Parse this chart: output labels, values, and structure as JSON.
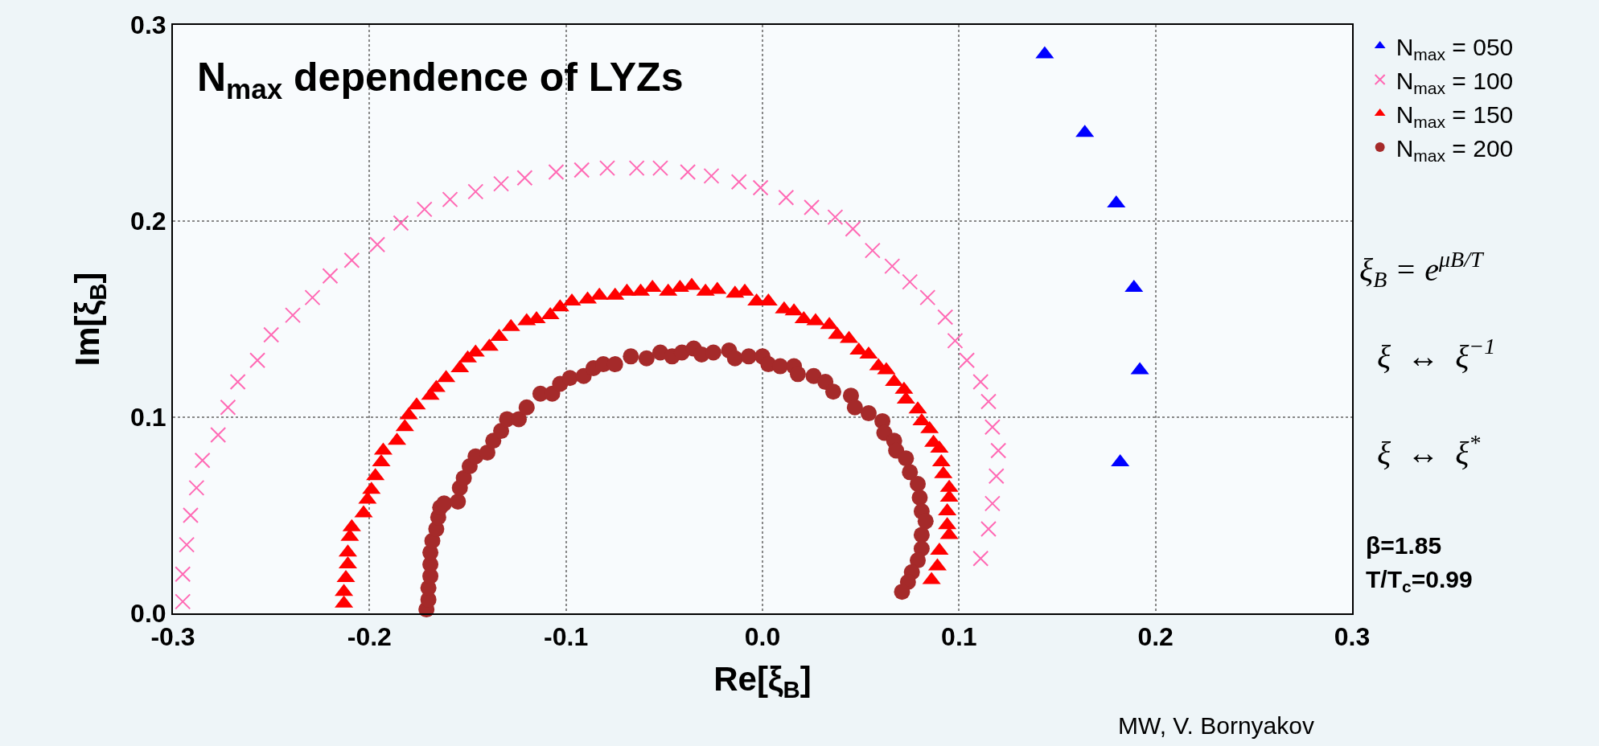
{
  "chart_data": {
    "type": "scatter",
    "title": "N$_{max}$ dependence of LYZs",
    "xlabel": "Re[ξ$_{B}$]",
    "ylabel": "Im[ξ$_{B}$]",
    "xlim": [
      -0.3,
      0.3
    ],
    "ylim": [
      0,
      0.3
    ],
    "xticks": [
      -0.3,
      -0.2,
      -0.1,
      {
        "value": 0,
        "label": "0.0"
      },
      0.1,
      0.2,
      0.3
    ],
    "yticks": [
      {
        "value": 0,
        "label": "0.0"
      },
      0.1,
      0.2,
      0.3
    ],
    "grid": true,
    "legend": "top right",
    "annotations": [
      "ξ$_{B}$ = e$^{μB/T}$",
      "ξ  ↔  ξ$^{−1}$",
      "ξ  ↔  ξ$^{*}$",
      "β=1.85",
      "T/T$_{c}$=0.99",
      "MW, V. Bornyakov"
    ],
    "series": [
      {
        "name": "N$_{max}$ = 050",
        "color": "#0000ff",
        "marker": "triangle",
        "x": [
          0.1436,
          0.164,
          0.18,
          0.189,
          0.192,
          0.182
        ],
        "values": [
          0.285,
          0.245,
          0.209,
          0.166,
          0.124,
          0.077
        ]
      },
      {
        "name": "N$_{max}$ = 100",
        "color": "#ff69b4",
        "marker": "cross",
        "x": [
          -0.295,
          -0.295,
          -0.293,
          -0.291,
          -0.288,
          -0.285,
          -0.277,
          -0.272,
          -0.267,
          -0.257,
          -0.25,
          -0.239,
          -0.229,
          -0.22,
          -0.209,
          -0.196,
          -0.184,
          -0.172,
          -0.159,
          -0.146,
          -0.133,
          -0.121,
          -0.105,
          -0.092,
          -0.079,
          -0.064,
          -0.052,
          -0.038,
          -0.026,
          -0.012,
          -0.001,
          0.012,
          0.025,
          0.037,
          0.046,
          0.056,
          0.066,
          0.075,
          0.084,
          0.093,
          0.098,
          0.104,
          0.111,
          0.115,
          0.117,
          0.12,
          0.119,
          0.117,
          0.115,
          0.111
        ],
        "values": [
          0.006,
          0.02,
          0.035,
          0.05,
          0.064,
          0.078,
          0.091,
          0.105,
          0.118,
          0.129,
          0.142,
          0.152,
          0.161,
          0.172,
          0.18,
          0.188,
          0.199,
          0.206,
          0.211,
          0.215,
          0.219,
          0.222,
          0.225,
          0.226,
          0.227,
          0.227,
          0.227,
          0.225,
          0.223,
          0.22,
          0.217,
          0.212,
          0.207,
          0.202,
          0.196,
          0.185,
          0.177,
          0.169,
          0.161,
          0.151,
          0.139,
          0.129,
          0.118,
          0.108,
          0.095,
          0.083,
          0.07,
          0.056,
          0.043,
          0.028
        ]
      },
      {
        "name": "N$_{max}$ = 150",
        "color": "#ff0000",
        "marker": "triangle",
        "x": [
          -0.213,
          -0.213,
          -0.212,
          -0.211,
          -0.211,
          -0.21,
          -0.209,
          -0.203,
          -0.201,
          -0.199,
          -0.197,
          -0.194,
          -0.193,
          -0.186,
          -0.182,
          -0.18,
          -0.176,
          -0.169,
          -0.166,
          -0.161,
          -0.154,
          -0.15,
          -0.146,
          -0.139,
          -0.134,
          -0.128,
          -0.12,
          -0.115,
          -0.108,
          -0.103,
          -0.097,
          -0.089,
          -0.083,
          -0.075,
          -0.069,
          -0.062,
          -0.056,
          -0.048,
          -0.042,
          -0.036,
          -0.029,
          -0.023,
          -0.014,
          -0.009,
          -0.003,
          0.003,
          0.011,
          0.016,
          0.021,
          0.027,
          0.034,
          0.038,
          0.044,
          0.049,
          0.054,
          0.059,
          0.063,
          0.067,
          0.072,
          0.073,
          0.079,
          0.081,
          0.085,
          0.087,
          0.09,
          0.091,
          0.092,
          0.095,
          0.095,
          0.094,
          0.094,
          0.095,
          0.09,
          0.089,
          0.086
        ],
        "values": [
          0.005,
          0.011,
          0.018,
          0.025,
          0.031,
          0.039,
          0.044,
          0.051,
          0.058,
          0.063,
          0.07,
          0.077,
          0.083,
          0.088,
          0.095,
          0.101,
          0.106,
          0.111,
          0.115,
          0.12,
          0.125,
          0.13,
          0.133,
          0.136,
          0.141,
          0.146,
          0.149,
          0.15,
          0.152,
          0.156,
          0.159,
          0.16,
          0.162,
          0.162,
          0.164,
          0.164,
          0.166,
          0.164,
          0.166,
          0.167,
          0.164,
          0.165,
          0.163,
          0.164,
          0.159,
          0.159,
          0.155,
          0.154,
          0.15,
          0.149,
          0.147,
          0.142,
          0.14,
          0.134,
          0.132,
          0.126,
          0.124,
          0.118,
          0.114,
          0.109,
          0.104,
          0.098,
          0.094,
          0.087,
          0.084,
          0.077,
          0.071,
          0.064,
          0.059,
          0.052,
          0.045,
          0.04,
          0.032,
          0.024,
          0.017
        ]
      },
      {
        "name": "N$_{max}$ = 200",
        "color": "#a52a2a",
        "marker": "circle",
        "x": [
          -0.171,
          -0.17,
          -0.17,
          -0.169,
          -0.169,
          -0.169,
          -0.168,
          -0.166,
          -0.165,
          -0.164,
          -0.162,
          -0.155,
          -0.154,
          -0.152,
          -0.149,
          -0.146,
          -0.14,
          -0.137,
          -0.133,
          -0.13,
          -0.124,
          -0.12,
          -0.113,
          -0.107,
          -0.103,
          -0.098,
          -0.091,
          -0.086,
          -0.081,
          -0.075,
          -0.067,
          -0.059,
          -0.052,
          -0.046,
          -0.041,
          -0.035,
          -0.031,
          -0.025,
          -0.017,
          -0.014,
          -0.007,
          0.0,
          0.003,
          0.009,
          0.016,
          0.018,
          0.026,
          0.032,
          0.036,
          0.045,
          0.047,
          0.054,
          0.061,
          0.062,
          0.067,
          0.068,
          0.073,
          0.075,
          0.079,
          0.08,
          0.081,
          0.083,
          0.081,
          0.081,
          0.079,
          0.076,
          0.074,
          0.071
        ],
        "values": [
          0.002,
          0.007,
          0.013,
          0.019,
          0.025,
          0.031,
          0.037,
          0.043,
          0.049,
          0.054,
          0.056,
          0.057,
          0.064,
          0.069,
          0.075,
          0.08,
          0.082,
          0.088,
          0.093,
          0.099,
          0.099,
          0.105,
          0.112,
          0.112,
          0.117,
          0.12,
          0.121,
          0.125,
          0.127,
          0.127,
          0.131,
          0.13,
          0.133,
          0.131,
          0.133,
          0.135,
          0.132,
          0.133,
          0.134,
          0.13,
          0.131,
          0.131,
          0.127,
          0.126,
          0.126,
          0.122,
          0.121,
          0.118,
          0.113,
          0.111,
          0.105,
          0.102,
          0.098,
          0.092,
          0.088,
          0.083,
          0.079,
          0.072,
          0.066,
          0.059,
          0.052,
          0.047,
          0.04,
          0.033,
          0.027,
          0.021,
          0.016,
          0.011
        ]
      }
    ]
  }
}
